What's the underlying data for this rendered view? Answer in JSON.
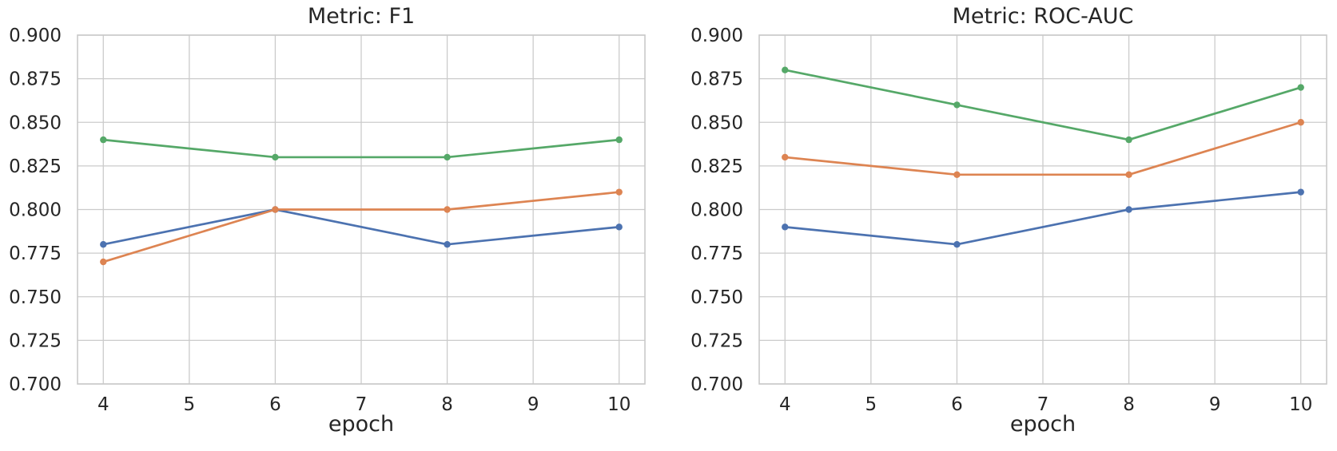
{
  "figure": {
    "background": "#ffffff",
    "text_color": "#262626",
    "grid_color": "#cbcbcb",
    "spine_color": "#c9c9c9"
  },
  "chart_data": [
    {
      "type": "line",
      "title": "Metric: F1",
      "xlabel": "epoch",
      "ylabel": "",
      "x": [
        4,
        6,
        8,
        10
      ],
      "series": [
        {
          "name": "blue",
          "color": "#4C72B0",
          "values": [
            0.78,
            0.8,
            0.78,
            0.79
          ]
        },
        {
          "name": "orange",
          "color": "#DD8452",
          "values": [
            0.77,
            0.8,
            0.8,
            0.81
          ]
        },
        {
          "name": "green",
          "color": "#55A868",
          "values": [
            0.84,
            0.83,
            0.83,
            0.84
          ]
        }
      ],
      "xlim": [
        3.7,
        10.3
      ],
      "ylim": [
        0.7,
        0.9
      ],
      "xtick_labels": [
        "4",
        "5",
        "6",
        "7",
        "8",
        "9",
        "10"
      ],
      "ytick_labels": [
        "0.700",
        "0.725",
        "0.750",
        "0.775",
        "0.800",
        "0.825",
        "0.850",
        "0.875",
        "0.900"
      ],
      "grid": true,
      "legend": false,
      "markers": true
    },
    {
      "type": "line",
      "title": "Metric: ROC-AUC",
      "xlabel": "epoch",
      "ylabel": "",
      "x": [
        4,
        6,
        8,
        10
      ],
      "series": [
        {
          "name": "blue",
          "color": "#4C72B0",
          "values": [
            0.79,
            0.78,
            0.8,
            0.81
          ]
        },
        {
          "name": "orange",
          "color": "#DD8452",
          "values": [
            0.83,
            0.82,
            0.82,
            0.85
          ]
        },
        {
          "name": "green",
          "color": "#55A868",
          "values": [
            0.88,
            0.86,
            0.84,
            0.87
          ]
        }
      ],
      "xlim": [
        3.7,
        10.3
      ],
      "ylim": [
        0.7,
        0.9
      ],
      "xtick_labels": [
        "4",
        "5",
        "6",
        "7",
        "8",
        "9",
        "10"
      ],
      "ytick_labels": [
        "0.700",
        "0.725",
        "0.750",
        "0.775",
        "0.800",
        "0.825",
        "0.850",
        "0.875",
        "0.900"
      ],
      "grid": true,
      "legend": false,
      "markers": true
    }
  ]
}
